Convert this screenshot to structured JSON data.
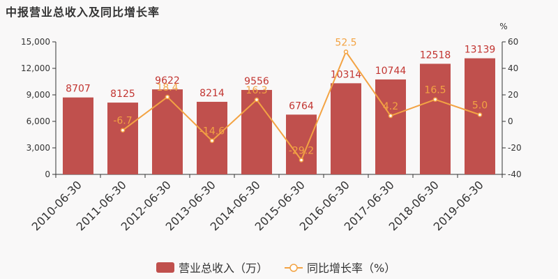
{
  "chart_data": {
    "type": "bar",
    "title": "中报营业总收入及同比增长率",
    "categories": [
      "2010-06-30",
      "2011-06-30",
      "2012-06-30",
      "2013-06-30",
      "2014-06-30",
      "2015-06-30",
      "2016-06-30",
      "2017-06-30",
      "2018-06-30",
      "2019-06-30"
    ],
    "series": [
      {
        "name": "营业总收入（万）",
        "type": "bar",
        "axis": "left",
        "color": "#c0504d",
        "values": [
          8707,
          8125,
          9622,
          8214,
          9556,
          6764,
          10314,
          10744,
          12518,
          13139
        ],
        "labels": [
          "8707",
          "8125",
          "9622",
          "8214",
          "9556",
          "6764",
          "10314",
          "10744",
          "12518",
          "13139"
        ]
      },
      {
        "name": "同比增长率（%）",
        "type": "line",
        "axis": "right",
        "color": "#f3a343",
        "values": [
          null,
          -6.7,
          18.4,
          -14.6,
          16.3,
          -29.2,
          52.5,
          4.2,
          16.5,
          5.0
        ],
        "labels": [
          "",
          "-6.7",
          "18.4",
          "-14.6",
          "16.3",
          "-29.2",
          "52.5",
          "4.2",
          "16.5",
          "5.0"
        ]
      }
    ],
    "y_left": {
      "range": [
        0,
        15000
      ],
      "ticks": [
        0,
        3000,
        6000,
        9000,
        12000,
        15000
      ],
      "tick_labels": [
        "0",
        "3,000",
        "6,000",
        "9,000",
        "12,000",
        "15,000"
      ]
    },
    "y_right": {
      "unit": "%",
      "range": [
        -40,
        60
      ],
      "ticks": [
        -40,
        -20,
        0,
        20,
        40,
        60
      ],
      "tick_labels": [
        "-40",
        "-20",
        "0",
        "20",
        "40",
        "60"
      ]
    },
    "grid": false,
    "legend_position": "bottom-center"
  }
}
